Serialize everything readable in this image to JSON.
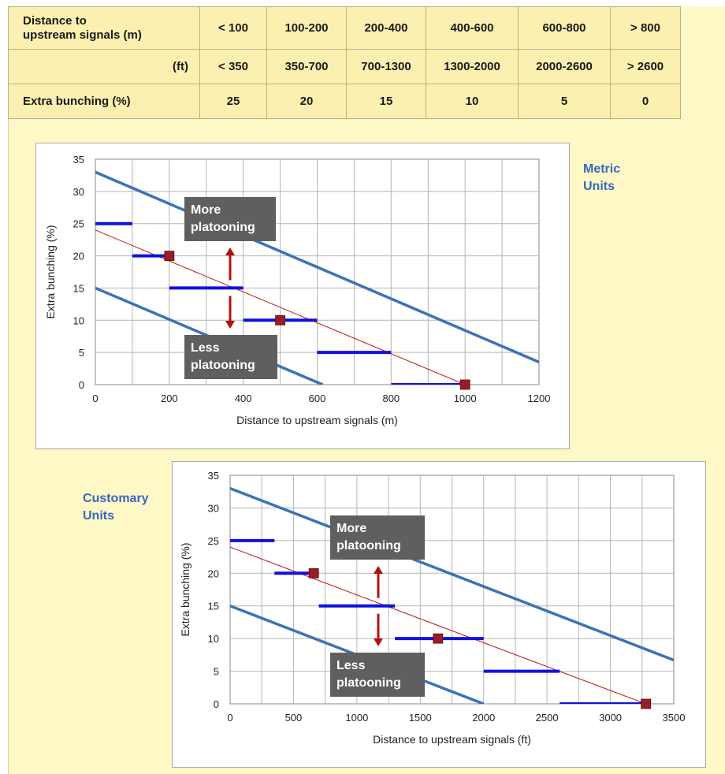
{
  "table": {
    "rows": [
      {
        "label": "Distance to\nupstream signals (m)",
        "cells": [
          "< 100",
          "100-200",
          "200-400",
          "400-600",
          "600-800",
          "> 800"
        ]
      },
      {
        "label": "(ft)",
        "cells": [
          "< 350",
          "350-700",
          "700-1300",
          "1300-2000",
          "2000-2600",
          "> 2600"
        ]
      },
      {
        "label": "Extra bunching (%)",
        "cells": [
          "25",
          "20",
          "15",
          "10",
          "5",
          "0"
        ]
      }
    ]
  },
  "colors": {
    "band_line": "#3d72b5",
    "step_segment": "#1111dd",
    "fit_line": "#c01818",
    "marker": "#9a1c24",
    "arrow": "#b01010",
    "callout_bg": "#5f5f5f",
    "unit_label": "#3a66c4"
  },
  "unit_labels": {
    "metric": "Metric\nUnits",
    "customary": "Customary\nUnits"
  },
  "chart_data": [
    {
      "type": "line",
      "unit_label_key": "metric",
      "xlabel": "Distance to upstream signals (m)",
      "ylabel": "Extra bunching (%)",
      "xlim": [
        0,
        1200
      ],
      "ylim": [
        0,
        35
      ],
      "xticks": [
        0,
        200,
        400,
        600,
        800,
        1000,
        1200
      ],
      "yticks": [
        0,
        5,
        10,
        15,
        20,
        25,
        30,
        35
      ],
      "grid": true,
      "band_lines": [
        {
          "x": [
            0,
            1200
          ],
          "y": [
            33,
            3.5
          ]
        },
        {
          "x": [
            0,
            615
          ],
          "y": [
            15,
            0
          ]
        }
      ],
      "fit_line": {
        "x": [
          0,
          1000
        ],
        "y": [
          24,
          0
        ]
      },
      "step_segments": [
        {
          "x": [
            0,
            100
          ],
          "y": 25
        },
        {
          "x": [
            100,
            200
          ],
          "y": 20
        },
        {
          "x": [
            200,
            400
          ],
          "y": 15
        },
        {
          "x": [
            400,
            600
          ],
          "y": 10
        },
        {
          "x": [
            600,
            800
          ],
          "y": 5
        },
        {
          "x": [
            800,
            1000
          ],
          "y": 0
        }
      ],
      "markers": [
        {
          "x": 200,
          "y": 20
        },
        {
          "x": 500,
          "y": 10
        },
        {
          "x": 1000,
          "y": 0
        }
      ],
      "annotations": [
        {
          "text": "More\nplatooning",
          "arrow": "up"
        },
        {
          "text": "Less\nplatooning",
          "arrow": "down"
        }
      ]
    },
    {
      "type": "line",
      "unit_label_key": "customary",
      "xlabel": "Distance to upstream signals (ft)",
      "ylabel": "Extra bunching (%)",
      "xlim": [
        0,
        3500
      ],
      "ylim": [
        0,
        35
      ],
      "xticks": [
        0,
        500,
        1000,
        1500,
        2000,
        2500,
        3000,
        3500
      ],
      "yticks": [
        0,
        5,
        10,
        15,
        20,
        25,
        30,
        35
      ],
      "grid": true,
      "band_lines": [
        {
          "x": [
            0,
            3500
          ],
          "y": [
            33,
            6.7
          ]
        },
        {
          "x": [
            0,
            2000
          ],
          "y": [
            15,
            0
          ]
        }
      ],
      "fit_line": {
        "x": [
          0,
          3280
        ],
        "y": [
          24,
          0
        ]
      },
      "step_segments": [
        {
          "x": [
            0,
            350
          ],
          "y": 25
        },
        {
          "x": [
            350,
            700
          ],
          "y": 20
        },
        {
          "x": [
            700,
            1300
          ],
          "y": 15
        },
        {
          "x": [
            1300,
            2000
          ],
          "y": 10
        },
        {
          "x": [
            2000,
            2600
          ],
          "y": 5
        },
        {
          "x": [
            2600,
            3280
          ],
          "y": 0
        }
      ],
      "markers": [
        {
          "x": 660,
          "y": 20
        },
        {
          "x": 1640,
          "y": 10
        },
        {
          "x": 3280,
          "y": 0
        }
      ],
      "annotations": [
        {
          "text": "More\nplatooning",
          "arrow": "up"
        },
        {
          "text": "Less\nplatooning",
          "arrow": "down"
        }
      ]
    }
  ]
}
